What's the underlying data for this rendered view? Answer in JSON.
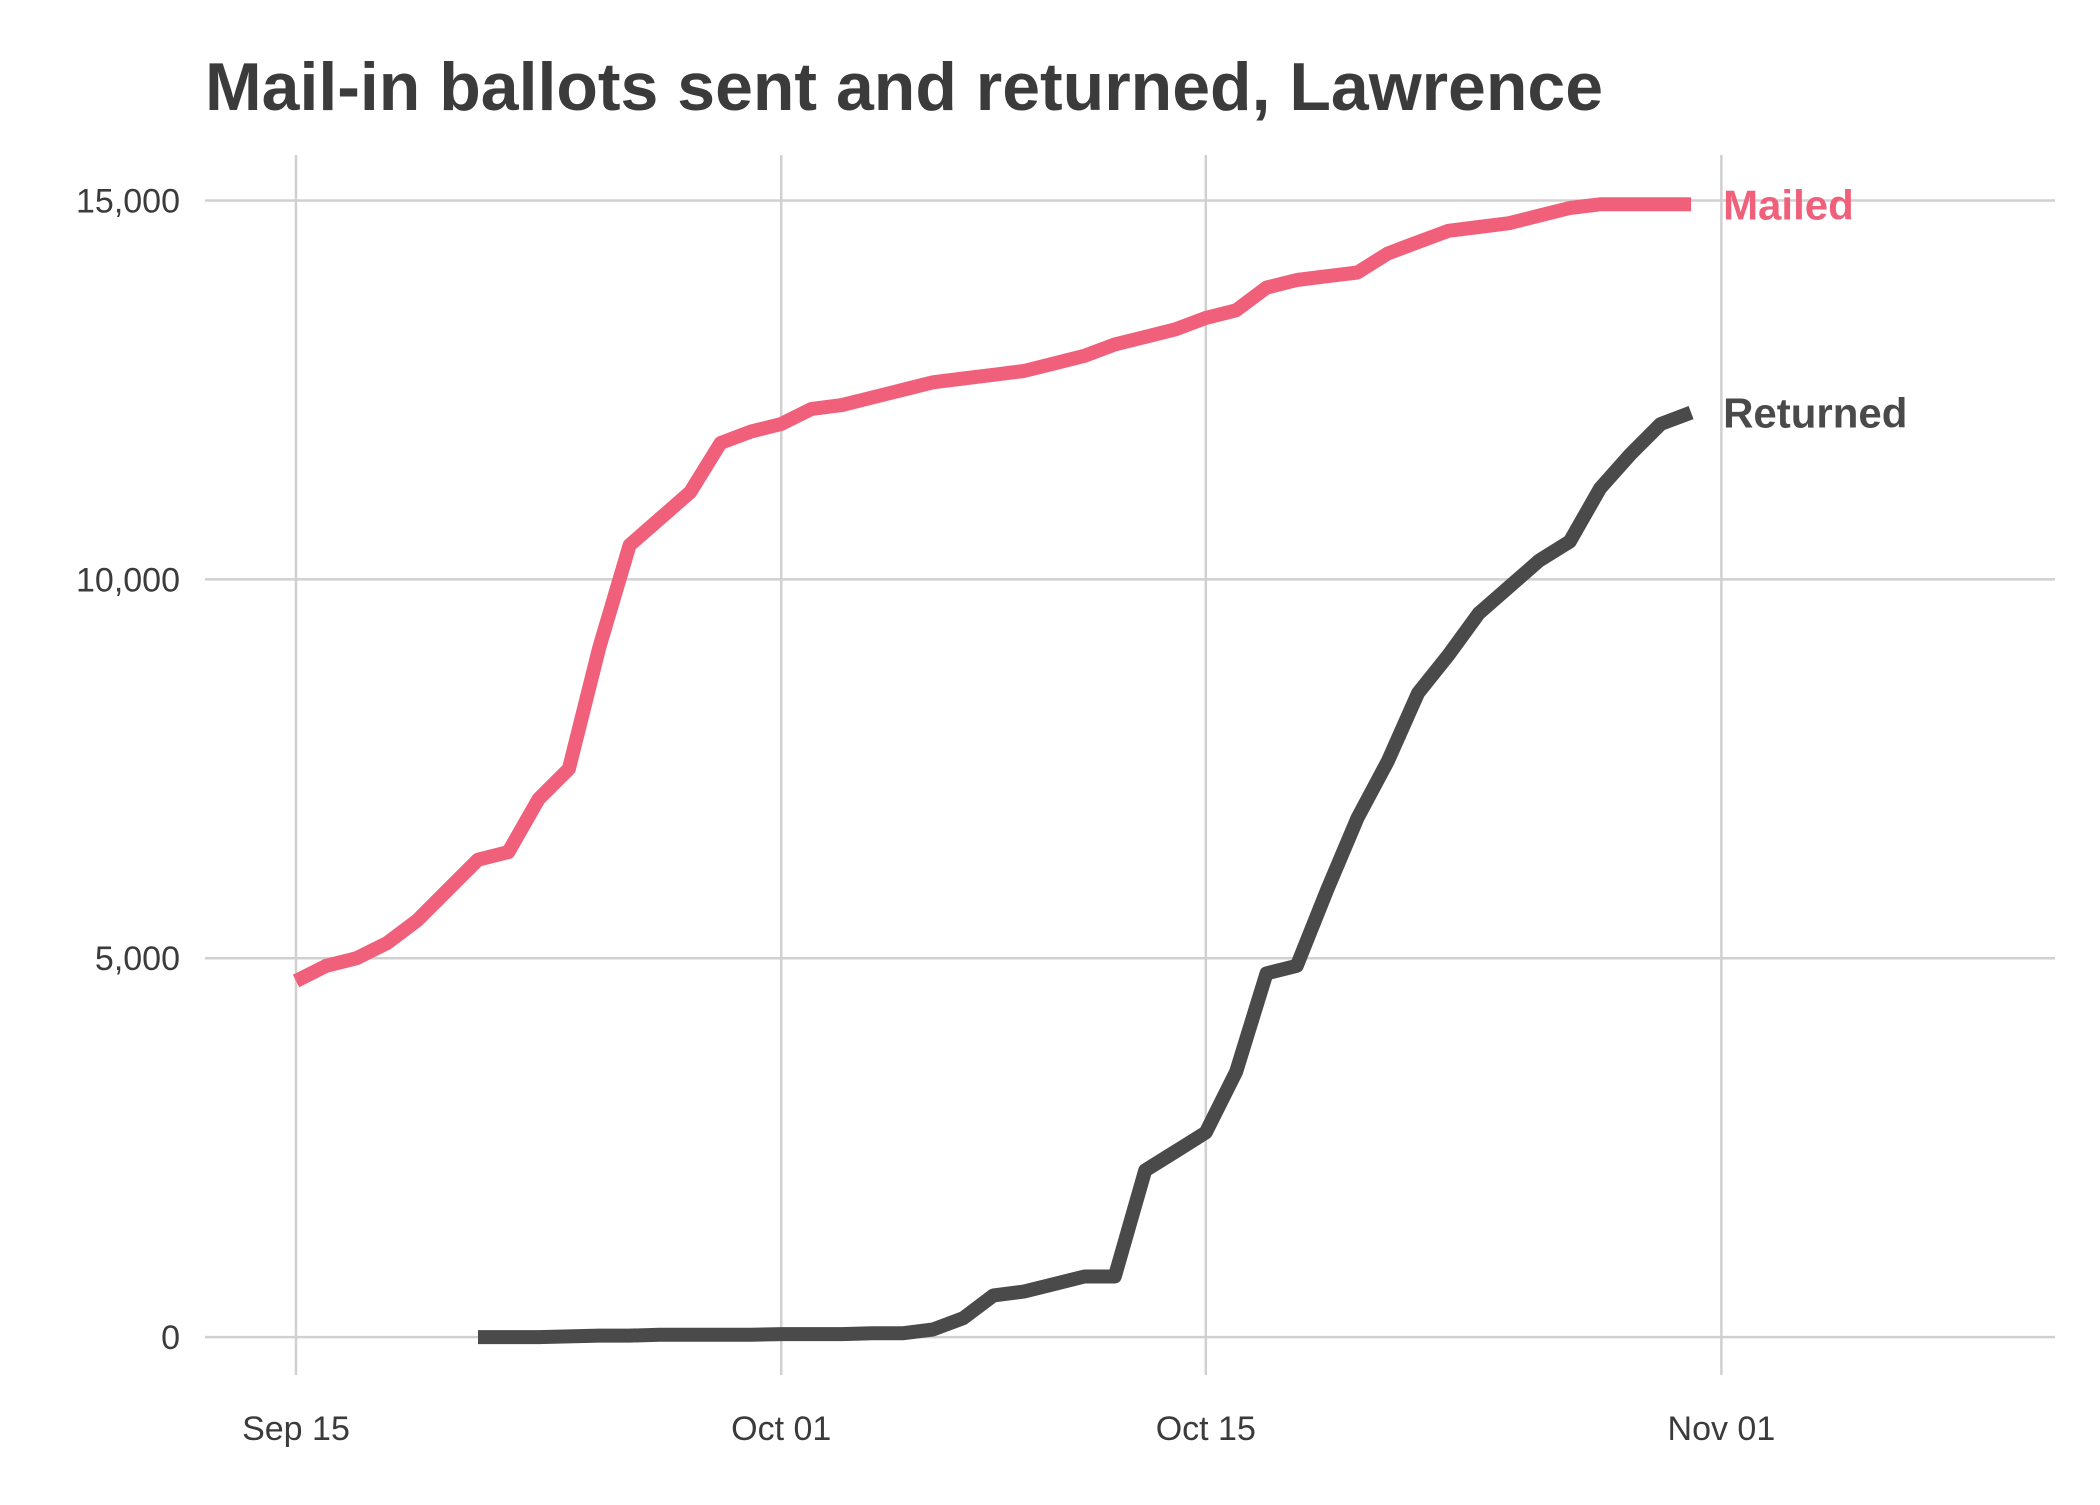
{
  "chart_data": {
    "type": "line",
    "title": "Mail-in ballots sent and returned, Lawrence",
    "xlabel": "",
    "ylabel": "",
    "x_axis": {
      "min": "2020-09-12",
      "max": "2020-11-12",
      "ticks": [
        {
          "date": "2020-09-15",
          "label": "Sep 15"
        },
        {
          "date": "2020-10-01",
          "label": "Oct 01"
        },
        {
          "date": "2020-10-15",
          "label": "Oct 15"
        },
        {
          "date": "2020-11-01",
          "label": "Nov 01"
        }
      ]
    },
    "y_axis": {
      "min": -500,
      "max": 15600,
      "ticks": [
        {
          "value": 0,
          "label": "0"
        },
        {
          "value": 5000,
          "label": "5,000"
        },
        {
          "value": 10000,
          "label": "10,000"
        },
        {
          "value": 15000,
          "label": "15,000"
        }
      ]
    },
    "grid": true,
    "legend": "direct labels at line ends",
    "series": [
      {
        "name": "Mailed",
        "color": "#f0607a",
        "points": [
          [
            "2020-09-15",
            4700
          ],
          [
            "2020-09-16",
            4900
          ],
          [
            "2020-09-17",
            5000
          ],
          [
            "2020-09-18",
            5200
          ],
          [
            "2020-09-19",
            5500
          ],
          [
            "2020-09-20",
            5900
          ],
          [
            "2020-09-21",
            6300
          ],
          [
            "2020-09-22",
            6400
          ],
          [
            "2020-09-23",
            7100
          ],
          [
            "2020-09-24",
            7500
          ],
          [
            "2020-09-25",
            9100
          ],
          [
            "2020-09-26",
            10450
          ],
          [
            "2020-09-27",
            10800
          ],
          [
            "2020-09-28",
            11150
          ],
          [
            "2020-09-29",
            11800
          ],
          [
            "2020-09-30",
            11950
          ],
          [
            "2020-10-01",
            12050
          ],
          [
            "2020-10-02",
            12250
          ],
          [
            "2020-10-03",
            12300
          ],
          [
            "2020-10-04",
            12400
          ],
          [
            "2020-10-05",
            12500
          ],
          [
            "2020-10-06",
            12600
          ],
          [
            "2020-10-07",
            12650
          ],
          [
            "2020-10-08",
            12700
          ],
          [
            "2020-10-09",
            12750
          ],
          [
            "2020-10-10",
            12850
          ],
          [
            "2020-10-11",
            12950
          ],
          [
            "2020-10-12",
            13100
          ],
          [
            "2020-10-13",
            13200
          ],
          [
            "2020-10-14",
            13300
          ],
          [
            "2020-10-15",
            13450
          ],
          [
            "2020-10-16",
            13550
          ],
          [
            "2020-10-17",
            13850
          ],
          [
            "2020-10-18",
            13950
          ],
          [
            "2020-10-19",
            14000
          ],
          [
            "2020-10-20",
            14050
          ],
          [
            "2020-10-21",
            14300
          ],
          [
            "2020-10-22",
            14450
          ],
          [
            "2020-10-23",
            14600
          ],
          [
            "2020-10-24",
            14650
          ],
          [
            "2020-10-25",
            14700
          ],
          [
            "2020-10-26",
            14800
          ],
          [
            "2020-10-27",
            14900
          ],
          [
            "2020-10-28",
            14950
          ],
          [
            "2020-10-29",
            14950
          ],
          [
            "2020-10-30",
            14950
          ],
          [
            "2020-10-31",
            14950
          ]
        ]
      },
      {
        "name": "Returned",
        "color": "#4a4a4a",
        "points": [
          [
            "2020-09-21",
            0
          ],
          [
            "2020-09-22",
            0
          ],
          [
            "2020-09-23",
            0
          ],
          [
            "2020-09-24",
            10
          ],
          [
            "2020-09-25",
            20
          ],
          [
            "2020-09-26",
            20
          ],
          [
            "2020-09-27",
            30
          ],
          [
            "2020-09-28",
            30
          ],
          [
            "2020-09-29",
            30
          ],
          [
            "2020-09-30",
            30
          ],
          [
            "2020-10-01",
            40
          ],
          [
            "2020-10-02",
            40
          ],
          [
            "2020-10-03",
            40
          ],
          [
            "2020-10-04",
            50
          ],
          [
            "2020-10-05",
            50
          ],
          [
            "2020-10-06",
            100
          ],
          [
            "2020-10-07",
            250
          ],
          [
            "2020-10-08",
            550
          ],
          [
            "2020-10-09",
            600
          ],
          [
            "2020-10-10",
            700
          ],
          [
            "2020-10-11",
            800
          ],
          [
            "2020-10-12",
            800
          ],
          [
            "2020-10-13",
            2200
          ],
          [
            "2020-10-14",
            2450
          ],
          [
            "2020-10-15",
            2700
          ],
          [
            "2020-10-16",
            3500
          ],
          [
            "2020-10-17",
            4800
          ],
          [
            "2020-10-18",
            4900
          ],
          [
            "2020-10-19",
            5900
          ],
          [
            "2020-10-20",
            6850
          ],
          [
            "2020-10-21",
            7600
          ],
          [
            "2020-10-22",
            8500
          ],
          [
            "2020-10-23",
            9000
          ],
          [
            "2020-10-24",
            9550
          ],
          [
            "2020-10-25",
            9900
          ],
          [
            "2020-10-26",
            10250
          ],
          [
            "2020-10-27",
            10500
          ],
          [
            "2020-10-28",
            11200
          ],
          [
            "2020-10-29",
            11650
          ],
          [
            "2020-10-30",
            12050
          ],
          [
            "2020-10-31",
            12200
          ]
        ]
      }
    ]
  }
}
